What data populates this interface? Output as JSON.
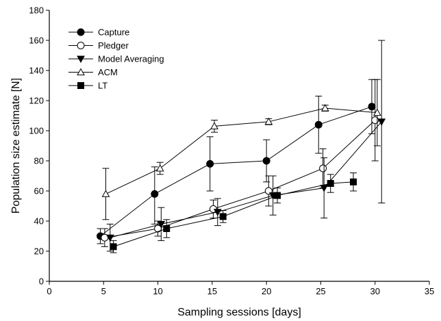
{
  "chart_data": {
    "type": "line",
    "xlabel": "Sampling sessions [days]",
    "ylabel": "Population size estimate [N]",
    "xlim": [
      0,
      35
    ],
    "ylim": [
      0,
      180
    ],
    "xticks": [
      0,
      5,
      10,
      15,
      20,
      25,
      30,
      35
    ],
    "yticks": [
      0,
      20,
      40,
      60,
      80,
      100,
      120,
      140,
      160,
      180
    ],
    "xtick_labels": [
      "0",
      "5",
      "10",
      "15",
      "20",
      "25",
      "30",
      "35"
    ],
    "ytick_labels": [
      "0",
      "20",
      "40",
      "60",
      "80",
      "100",
      "120",
      "140",
      "160",
      "180"
    ],
    "grid": false,
    "legend_position": "top-left",
    "series": [
      {
        "name": "Capture",
        "marker": "filled-circle",
        "points": [
          {
            "x": 4.7,
            "y": 30,
            "lo": 25,
            "hi": 35
          },
          {
            "x": 9.7,
            "y": 58,
            "lo": 38,
            "hi": 76
          },
          {
            "x": 14.8,
            "y": 78,
            "lo": 60,
            "hi": 96
          },
          {
            "x": 20.0,
            "y": 80,
            "lo": 66,
            "hi": 94
          },
          {
            "x": 24.8,
            "y": 104,
            "lo": 85,
            "hi": 123
          },
          {
            "x": 29.7,
            "y": 116,
            "lo": 98,
            "hi": 134
          }
        ]
      },
      {
        "name": "Pledger",
        "marker": "open-circle",
        "points": [
          {
            "x": 5.1,
            "y": 29,
            "lo": 23,
            "hi": 35
          },
          {
            "x": 10.0,
            "y": 35,
            "lo": 30,
            "hi": 40
          },
          {
            "x": 15.1,
            "y": 48,
            "lo": 42,
            "hi": 54
          },
          {
            "x": 20.2,
            "y": 60,
            "lo": 50,
            "hi": 70
          },
          {
            "x": 25.2,
            "y": 75,
            "lo": 62,
            "hi": 88
          },
          {
            "x": 30.0,
            "y": 107,
            "lo": 80,
            "hi": 134
          }
        ]
      },
      {
        "name": "Model Averaging",
        "marker": "filled-triangle-down",
        "points": [
          {
            "x": 5.6,
            "y": 29,
            "lo": 20,
            "hi": 38
          },
          {
            "x": 10.3,
            "y": 38,
            "lo": 27,
            "hi": 49
          },
          {
            "x": 15.5,
            "y": 46,
            "lo": 37,
            "hi": 55
          },
          {
            "x": 20.6,
            "y": 57,
            "lo": 44,
            "hi": 70
          },
          {
            "x": 25.3,
            "y": 62,
            "lo": 42,
            "hi": 82
          },
          {
            "x": 30.6,
            "y": 106,
            "lo": 52,
            "hi": 160
          }
        ]
      },
      {
        "name": "ACM",
        "marker": "open-triangle-up",
        "points": [
          {
            "x": 5.2,
            "y": 58,
            "lo": 41,
            "hi": 75
          },
          {
            "x": 10.2,
            "y": 75,
            "lo": 71,
            "hi": 79
          },
          {
            "x": 15.2,
            "y": 103,
            "lo": 99,
            "hi": 107
          },
          {
            "x": 20.2,
            "y": 106,
            "lo": 104,
            "hi": 108
          },
          {
            "x": 25.4,
            "y": 115,
            "lo": 113,
            "hi": 117
          },
          {
            "x": 30.2,
            "y": 112,
            "lo": 90,
            "hi": 134
          }
        ]
      },
      {
        "name": "LT",
        "marker": "filled-square",
        "points": [
          {
            "x": 5.9,
            "y": 23,
            "lo": 19,
            "hi": 27
          },
          {
            "x": 10.8,
            "y": 35,
            "lo": 29,
            "hi": 41
          },
          {
            "x": 16.0,
            "y": 43,
            "lo": 39,
            "hi": 47
          },
          {
            "x": 21.0,
            "y": 57,
            "lo": 52,
            "hi": 62
          },
          {
            "x": 25.9,
            "y": 65,
            "lo": 59,
            "hi": 71
          },
          {
            "x": 28.0,
            "y": 66,
            "lo": 60,
            "hi": 72
          }
        ]
      }
    ]
  }
}
